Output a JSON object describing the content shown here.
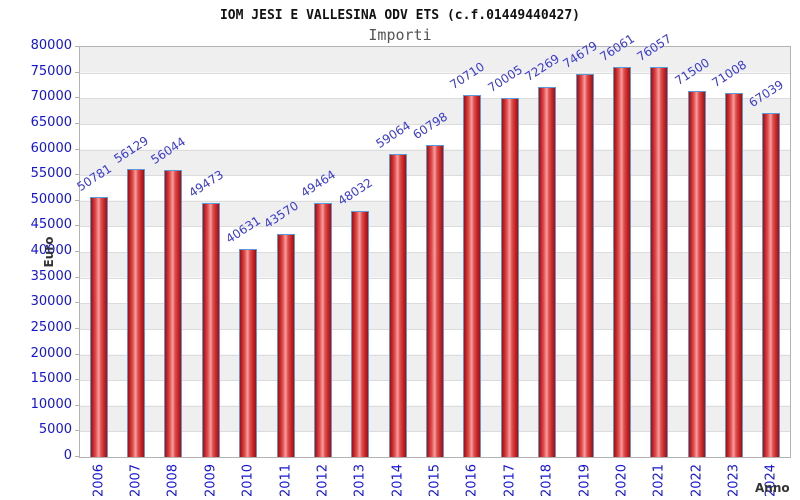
{
  "chart_data": {
    "type": "bar",
    "title": "IOM JESI E VALLESINA ODV ETS (c.f.01449440427)",
    "subtitle": "Importi",
    "xlabel": "Anno",
    "ylabel": "Euro",
    "categories": [
      "2006",
      "2007",
      "2008",
      "2009",
      "2010",
      "2011",
      "2012",
      "2013",
      "2014",
      "2015",
      "2016",
      "2017",
      "2018",
      "2019",
      "2020",
      "2021",
      "2022",
      "2023",
      "2024"
    ],
    "values": [
      50781,
      56129,
      56044,
      49473,
      40631,
      43570,
      49464,
      48032,
      59064,
      60798,
      70710,
      70005,
      72269,
      74679,
      76061,
      76057,
      71500,
      71008,
      67039
    ],
    "yticks": [
      0,
      5000,
      10000,
      15000,
      20000,
      25000,
      30000,
      35000,
      40000,
      45000,
      50000,
      55000,
      60000,
      65000,
      70000,
      75000,
      80000
    ],
    "ylim": [
      0,
      80000
    ],
    "grid": true,
    "legend": "none",
    "band_colors": [
      "#efefef",
      "#ffffff"
    ],
    "gridline_color": "#dcdcdc",
    "axis_border_color": "#b3b3b3",
    "bar_border_color": "#5b9bd5",
    "bar_gradient": [
      "#9e1212",
      "#c42020",
      "#e05050",
      "#f4a0a0",
      "#e05050",
      "#c42020",
      "#9e1212"
    ],
    "value_label_color": "#3a3ad0",
    "tick_label_color": "#1414d8"
  }
}
